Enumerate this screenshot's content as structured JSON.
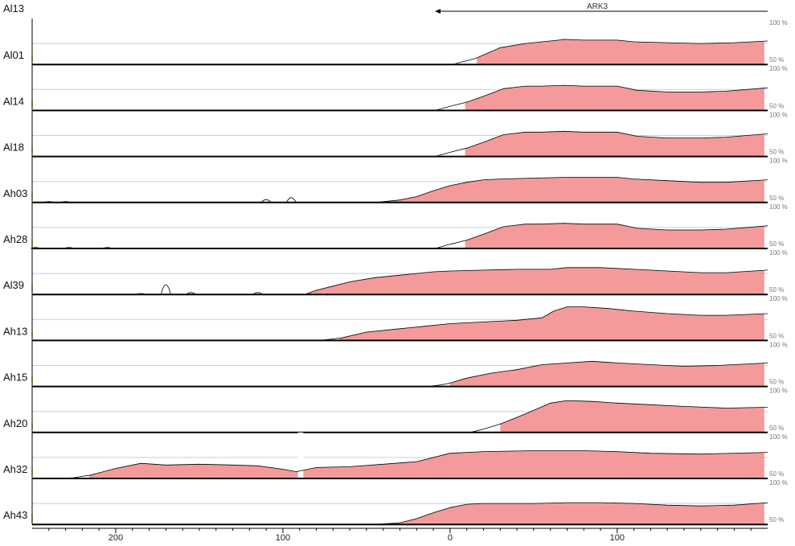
{
  "reference": "Al13",
  "gene": {
    "label": "ARK3"
  },
  "chart_data": {
    "type": "area",
    "title": "",
    "xlabel": "",
    "ylabel": "",
    "xlim": [
      250,
      -190
    ],
    "ylim": [
      50,
      100
    ],
    "y_tick_labels": [
      "100 %",
      "50 %"
    ],
    "x_ticks": [
      200,
      100,
      0,
      -100
    ],
    "x_tick_labels": [
      "200",
      "100",
      "0",
      "100"
    ],
    "fill_color": "#f49a9a",
    "baseline_color": "#000000",
    "series": [
      {
        "name": "Al01",
        "line": [
          [
            -2,
            50
          ],
          [
            -5,
            52
          ],
          [
            -15,
            57
          ],
          [
            -30,
            70
          ],
          [
            -45,
            75
          ],
          [
            -55,
            77
          ],
          [
            -65,
            79
          ],
          [
            -68,
            80
          ],
          [
            -80,
            79
          ],
          [
            -100,
            79
          ],
          [
            -110,
            77
          ],
          [
            -130,
            76
          ],
          [
            -150,
            75
          ],
          [
            -170,
            76
          ],
          [
            -190,
            78
          ]
        ],
        "fill": [
          [
            -16,
            55
          ],
          [
            -188,
            55
          ]
        ]
      },
      {
        "name": "Al14",
        "line": [
          [
            9,
            50
          ],
          [
            0,
            55
          ],
          [
            -10,
            60
          ],
          [
            -20,
            67
          ],
          [
            -32,
            76
          ],
          [
            -45,
            79
          ],
          [
            -55,
            79
          ],
          [
            -68,
            80
          ],
          [
            -80,
            79
          ],
          [
            -100,
            79
          ],
          [
            -112,
            74
          ],
          [
            -130,
            72
          ],
          [
            -150,
            72
          ],
          [
            -165,
            73
          ],
          [
            -190,
            77
          ]
        ],
        "fill": [
          [
            -9,
            60
          ],
          [
            -188,
            60
          ]
        ]
      },
      {
        "name": "Al18",
        "line": [
          [
            9,
            50
          ],
          [
            0,
            55
          ],
          [
            -10,
            60
          ],
          [
            -20,
            67
          ],
          [
            -32,
            76
          ],
          [
            -45,
            79
          ],
          [
            -55,
            79
          ],
          [
            -68,
            80
          ],
          [
            -80,
            79
          ],
          [
            -100,
            79
          ],
          [
            -112,
            74
          ],
          [
            -130,
            72
          ],
          [
            -150,
            72
          ],
          [
            -165,
            73
          ],
          [
            -190,
            77
          ]
        ],
        "fill": [
          [
            -9,
            60
          ],
          [
            -188,
            60
          ]
        ]
      },
      {
        "name": "Ah03",
        "line": [
          [
            45,
            50
          ],
          [
            40,
            51
          ],
          [
            30,
            53
          ],
          [
            20,
            57
          ],
          [
            10,
            64
          ],
          [
            0,
            70
          ],
          [
            -10,
            74
          ],
          [
            -20,
            77
          ],
          [
            -30,
            78
          ],
          [
            -50,
            79
          ],
          [
            -70,
            80
          ],
          [
            -90,
            80
          ],
          [
            -100,
            80
          ],
          [
            -110,
            78
          ],
          [
            -130,
            76
          ],
          [
            -150,
            74
          ],
          [
            -165,
            74
          ],
          [
            -190,
            77
          ]
        ],
        "fill": [
          [
            45,
            50
          ],
          [
            -188,
            50
          ]
        ],
        "blips": [
          [
            240,
            1
          ],
          [
            230,
            1
          ],
          [
            110,
            3
          ],
          [
            95,
            5
          ]
        ]
      },
      {
        "name": "Ah28",
        "line": [
          [
            9,
            50
          ],
          [
            0,
            55
          ],
          [
            -10,
            60
          ],
          [
            -20,
            67
          ],
          [
            -32,
            76
          ],
          [
            -45,
            79
          ],
          [
            -55,
            79
          ],
          [
            -68,
            80
          ],
          [
            -80,
            79
          ],
          [
            -100,
            79
          ],
          [
            -112,
            74
          ],
          [
            -130,
            72
          ],
          [
            -150,
            72
          ],
          [
            -165,
            73
          ],
          [
            -190,
            77
          ]
        ],
        "fill": [
          [
            -9,
            60
          ],
          [
            -188,
            60
          ]
        ],
        "blips": [
          [
            248,
            1
          ],
          [
            228,
            1
          ],
          [
            205,
            1
          ]
        ]
      },
      {
        "name": "Al39",
        "line": [
          [
            87,
            50
          ],
          [
            80,
            55
          ],
          [
            70,
            60
          ],
          [
            60,
            65
          ],
          [
            45,
            70
          ],
          [
            30,
            73
          ],
          [
            10,
            77
          ],
          [
            0,
            78
          ],
          [
            -20,
            79
          ],
          [
            -40,
            80
          ],
          [
            -60,
            80
          ],
          [
            -70,
            82
          ],
          [
            -90,
            82
          ],
          [
            -110,
            80
          ],
          [
            -130,
            78
          ],
          [
            -150,
            76
          ],
          [
            -165,
            76
          ],
          [
            -190,
            79
          ]
        ],
        "fill": [
          [
            87,
            50
          ],
          [
            -188,
            50
          ]
        ],
        "blips": [
          [
            185,
            1
          ],
          [
            170,
            10
          ],
          [
            155,
            2
          ],
          [
            115,
            2
          ]
        ]
      },
      {
        "name": "Ah13",
        "line": [
          [
            78,
            50
          ],
          [
            65,
            53
          ],
          [
            50,
            60
          ],
          [
            30,
            64
          ],
          [
            15,
            67
          ],
          [
            0,
            70
          ],
          [
            -20,
            72
          ],
          [
            -40,
            74
          ],
          [
            -55,
            77
          ],
          [
            -62,
            85
          ],
          [
            -70,
            90
          ],
          [
            -80,
            90
          ],
          [
            -95,
            88
          ],
          [
            -110,
            85
          ],
          [
            -130,
            82
          ],
          [
            -150,
            80
          ],
          [
            -165,
            80
          ],
          [
            -190,
            82
          ]
        ],
        "fill": [
          [
            66,
            52
          ],
          [
            -188,
            52
          ]
        ]
      },
      {
        "name": "Ah15",
        "line": [
          [
            13,
            50
          ],
          [
            5,
            52
          ],
          [
            0,
            54
          ],
          [
            -10,
            60
          ],
          [
            -25,
            66
          ],
          [
            -40,
            70
          ],
          [
            -55,
            76
          ],
          [
            -70,
            78
          ],
          [
            -85,
            80
          ],
          [
            -100,
            78
          ],
          [
            -120,
            76
          ],
          [
            -140,
            74
          ],
          [
            -160,
            75
          ],
          [
            -190,
            78
          ]
        ],
        "fill": [
          [
            0,
            52
          ],
          [
            -188,
            52
          ]
        ]
      },
      {
        "name": "Ah20",
        "line": [
          [
            -12,
            50
          ],
          [
            -20,
            54
          ],
          [
            -30,
            60
          ],
          [
            -45,
            72
          ],
          [
            -60,
            85
          ],
          [
            -70,
            88
          ],
          [
            -85,
            87
          ],
          [
            -100,
            85
          ],
          [
            -120,
            83
          ],
          [
            -140,
            81
          ],
          [
            -165,
            79
          ],
          [
            -190,
            80
          ]
        ],
        "fill": [
          [
            -30,
            60
          ],
          [
            -188,
            60
          ]
        ]
      },
      {
        "name": "Ah32",
        "line": [
          [
            232,
            50
          ],
          [
            225,
            51
          ],
          [
            215,
            54
          ],
          [
            200,
            62
          ],
          [
            185,
            68
          ],
          [
            170,
            66
          ],
          [
            150,
            67
          ],
          [
            130,
            66
          ],
          [
            115,
            65
          ],
          [
            100,
            61
          ],
          [
            92,
            58
          ],
          [
            80,
            63
          ],
          [
            60,
            64
          ],
          [
            40,
            67
          ],
          [
            20,
            70
          ],
          [
            0,
            80
          ],
          [
            -20,
            82
          ],
          [
            -50,
            83
          ],
          [
            -80,
            83
          ],
          [
            -100,
            82
          ],
          [
            -120,
            80
          ],
          [
            -150,
            79
          ],
          [
            -190,
            81
          ]
        ],
        "fill": [
          [
            216,
            50
          ],
          [
            -188,
            50
          ]
        ],
        "gaps": [
          [
            88,
            91
          ]
        ]
      },
      {
        "name": "Ah43",
        "line": [
          [
            45,
            50
          ],
          [
            30,
            52
          ],
          [
            20,
            57
          ],
          [
            10,
            64
          ],
          [
            0,
            70
          ],
          [
            -10,
            74
          ],
          [
            -20,
            75
          ],
          [
            -35,
            75
          ],
          [
            -50,
            75
          ],
          [
            -70,
            76
          ],
          [
            -90,
            76
          ],
          [
            -110,
            75
          ],
          [
            -130,
            73
          ],
          [
            -150,
            72
          ],
          [
            -170,
            73
          ],
          [
            -190,
            76
          ]
        ],
        "fill": [
          [
            45,
            50
          ],
          [
            -188,
            50
          ]
        ]
      }
    ]
  }
}
